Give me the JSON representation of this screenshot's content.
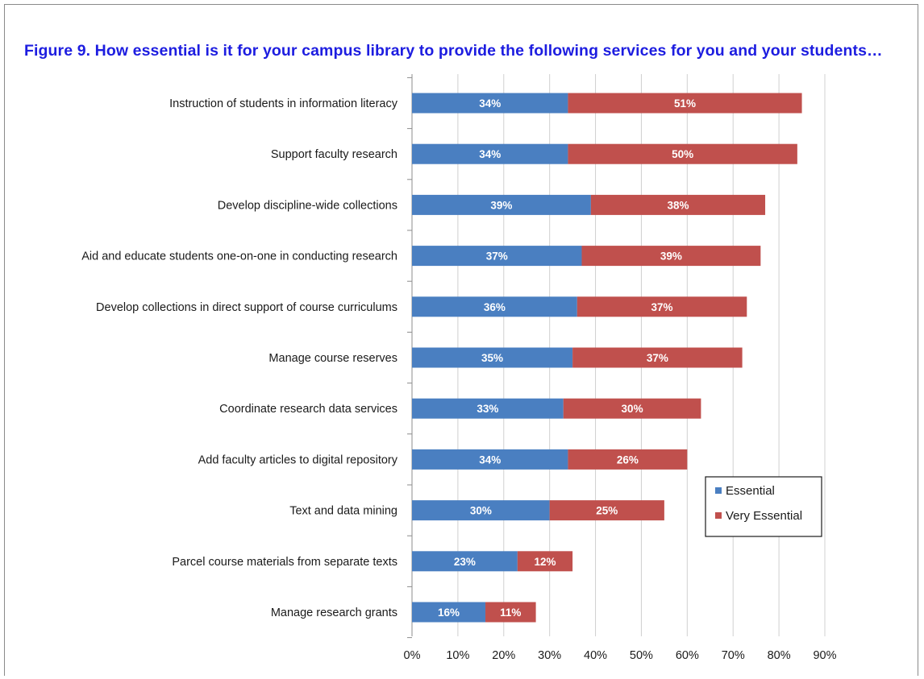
{
  "chart_data": {
    "type": "bar",
    "orientation": "horizontal",
    "stacked": true,
    "title": "Figure 9. How essential is it for your campus library to provide the following services for you and your students…",
    "categories": [
      "Instruction of students in information literacy",
      "Support faculty research",
      "Develop discipline-wide collections",
      "Aid and educate students one-on-one in conducting research",
      "Develop collections in direct support of course curriculums",
      "Manage course reserves",
      "Coordinate research data services",
      "Add faculty articles to digital repository",
      "Text and data mining",
      "Parcel course materials from separate texts",
      "Manage research grants"
    ],
    "series": [
      {
        "name": "Essential",
        "color": "#4a7fc1",
        "values": [
          34,
          34,
          39,
          37,
          36,
          35,
          33,
          34,
          30,
          23,
          16
        ],
        "labels": [
          "34%",
          "34%",
          "39%",
          "37%",
          "36%",
          "35%",
          "33%",
          "34%",
          "30%",
          "23%",
          "16%"
        ]
      },
      {
        "name": "Very Essential",
        "color": "#c0504d",
        "values": [
          51,
          50,
          38,
          39,
          37,
          37,
          30,
          26,
          25,
          12,
          11
        ],
        "labels": [
          "51%",
          "50%",
          "38%",
          "39%",
          "37%",
          "37%",
          "30%",
          "26%",
          "25%",
          "12%",
          "11%"
        ]
      }
    ],
    "xlim": [
      0,
      90
    ],
    "xticks": [
      "0%",
      "10%",
      "20%",
      "30%",
      "40%",
      "50%",
      "60%",
      "70%",
      "80%",
      "90%"
    ],
    "xlabel": "",
    "ylabel": "",
    "grid": true,
    "legend": "right"
  }
}
